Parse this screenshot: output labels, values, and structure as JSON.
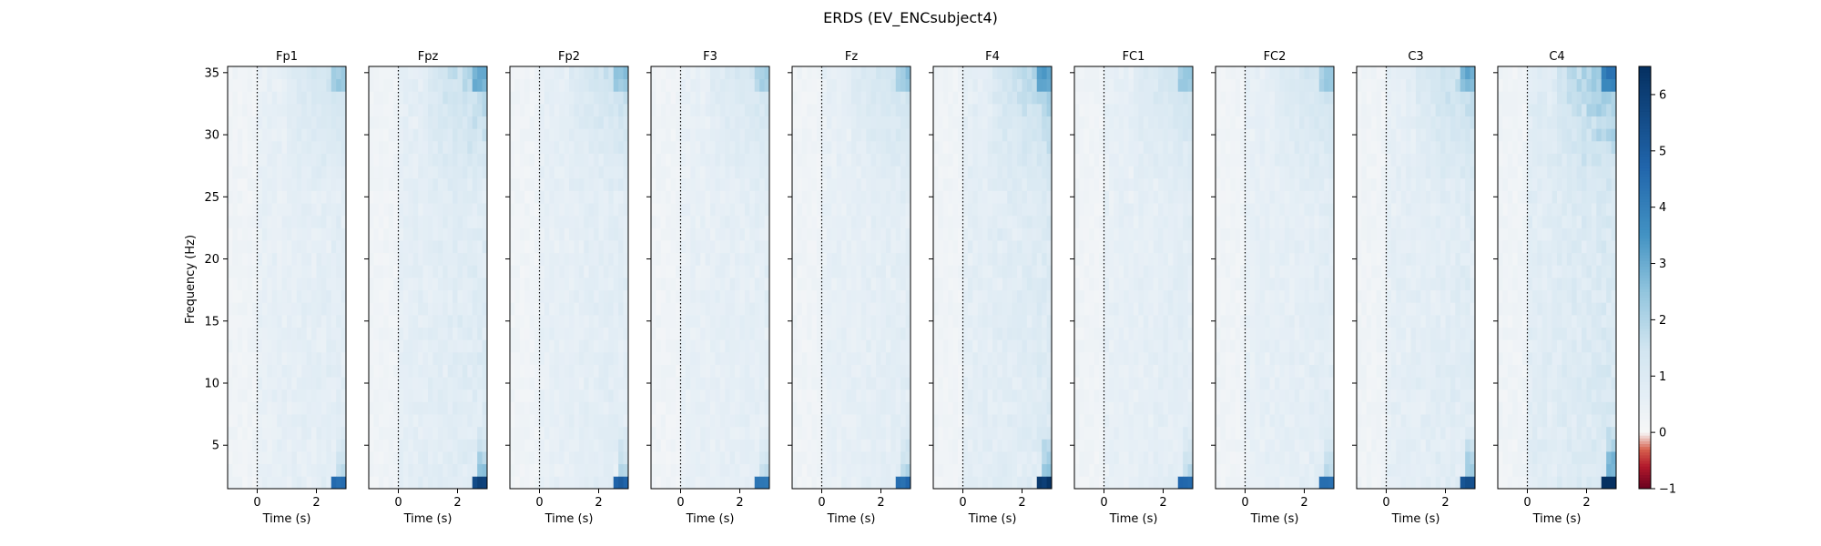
{
  "chart_data": {
    "type": "heatmap",
    "title": "ERDS (EV_ENCsubject4)",
    "ylabel": "Frequency (Hz)",
    "xlabel": "Time (s)",
    "xlim": [
      -1.0,
      3.0
    ],
    "ylim": [
      1.5,
      35.5
    ],
    "x_ticks": [
      0,
      2
    ],
    "y_ticks": [
      5,
      10,
      15,
      20,
      25,
      30,
      35
    ],
    "onset_line_x": 0,
    "colorbar": {
      "vmin": -1,
      "vmax": 6.5,
      "ticks": [
        -1,
        0,
        1,
        2,
        3,
        4,
        5,
        6
      ],
      "cmap": "RdBu"
    },
    "panels": [
      {
        "name": "Fp1",
        "x_tick_labels": [
          "0",
          "2"
        ]
      },
      {
        "name": "Fpz",
        "x_tick_labels": [
          "0",
          "2"
        ]
      },
      {
        "name": "Fp2",
        "x_tick_labels": [
          "0",
          "2"
        ]
      },
      {
        "name": "F3",
        "x_tick_labels": [
          "0",
          "2"
        ]
      },
      {
        "name": "Fz",
        "x_tick_labels": [
          "0",
          "2"
        ]
      },
      {
        "name": "F4",
        "x_tick_labels": [
          "0",
          "2"
        ]
      },
      {
        "name": "FC1",
        "x_tick_labels": [
          "0",
          "2"
        ]
      },
      {
        "name": "FC2",
        "x_tick_labels": [
          "0",
          "2"
        ]
      },
      {
        "name": "C3",
        "x_tick_labels": [
          "0",
          "2"
        ]
      },
      {
        "name": "C4",
        "x_tick_labels": [
          "0",
          "2"
        ]
      }
    ],
    "y_tick_labels": [
      "5",
      "10",
      "15",
      "20",
      "25",
      "30",
      "35"
    ],
    "colorbar_tick_labels": [
      "−1",
      "0",
      "1",
      "2",
      "3",
      "4",
      "5",
      "6"
    ],
    "panel_strength": [
      0.55,
      0.75,
      0.6,
      0.5,
      0.55,
      0.8,
      0.55,
      0.55,
      0.7,
      1.0
    ]
  }
}
